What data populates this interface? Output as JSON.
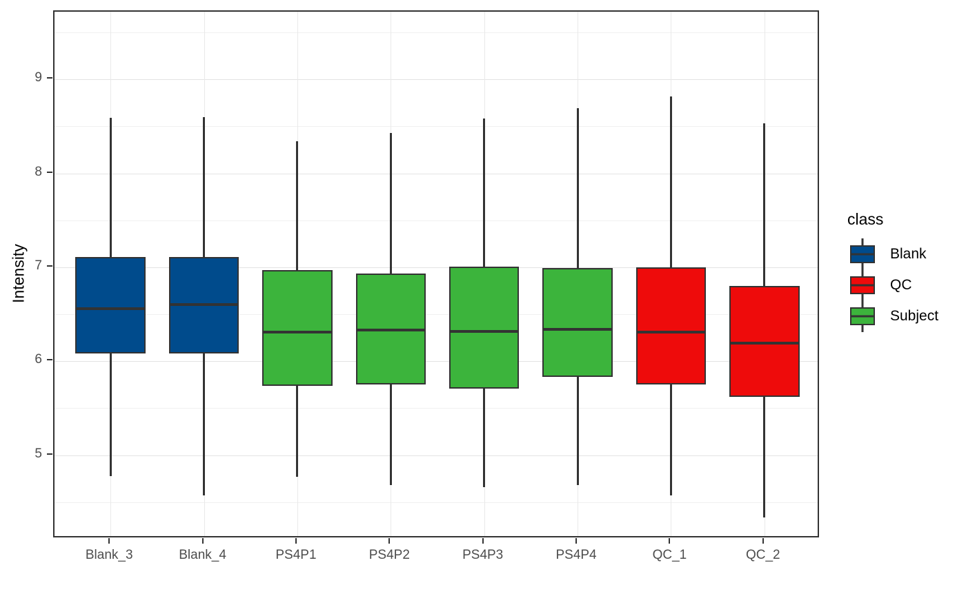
{
  "chart_data": {
    "type": "boxplot",
    "title": "",
    "xlabel": "",
    "ylabel": "Intensity",
    "categories": [
      "Blank_3",
      "Blank_4",
      "PS4P1",
      "PS4P2",
      "PS4P3",
      "PS4P4",
      "QC_1",
      "QC_2"
    ],
    "series": [
      {
        "sample": "Blank_3",
        "class": "Blank",
        "whisker_low": 4.78,
        "q1": 6.08,
        "median": 6.56,
        "q3": 7.11,
        "whisker_high": 8.59
      },
      {
        "sample": "Blank_4",
        "class": "Blank",
        "whisker_low": 4.57,
        "q1": 6.08,
        "median": 6.6,
        "q3": 7.11,
        "whisker_high": 8.6
      },
      {
        "sample": "PS4P1",
        "class": "Subject",
        "whisker_low": 4.77,
        "q1": 5.74,
        "median": 6.31,
        "q3": 6.97,
        "whisker_high": 8.34
      },
      {
        "sample": "PS4P2",
        "class": "Subject",
        "whisker_low": 4.68,
        "q1": 5.75,
        "median": 6.33,
        "q3": 6.93,
        "whisker_high": 8.43
      },
      {
        "sample": "PS4P3",
        "class": "Subject",
        "whisker_low": 4.66,
        "q1": 5.71,
        "median": 6.32,
        "q3": 7.01,
        "whisker_high": 8.58
      },
      {
        "sample": "PS4P4",
        "class": "Subject",
        "whisker_low": 4.68,
        "q1": 5.83,
        "median": 6.34,
        "q3": 6.99,
        "whisker_high": 8.69
      },
      {
        "sample": "QC_1",
        "class": "QC",
        "whisker_low": 4.57,
        "q1": 5.75,
        "median": 6.31,
        "q3": 7.0,
        "whisker_high": 8.82
      },
      {
        "sample": "QC_2",
        "class": "QC",
        "whisker_low": 4.34,
        "q1": 5.62,
        "median": 6.19,
        "q3": 6.8,
        "whisker_high": 8.53
      }
    ],
    "yticks": [
      9,
      8,
      7,
      6,
      5
    ],
    "yticks_minor": [
      9.5,
      8.5,
      7.5,
      6.5,
      5.5,
      4.5
    ],
    "ylim": [
      4.11,
      9.72
    ],
    "grid": {
      "major": true,
      "minor": true
    },
    "legend": {
      "title": "class",
      "position": "right",
      "entries": [
        {
          "label": "Blank",
          "color": "#004B8C"
        },
        {
          "label": "QC",
          "color": "#EE0B0B"
        },
        {
          "label": "Subject",
          "color": "#3CB43C"
        }
      ]
    },
    "colors": {
      "Blank": "#004B8C",
      "QC": "#EE0B0B",
      "Subject": "#3CB43C",
      "box_border": "#333333",
      "median": "#333333",
      "whisker": "#333333",
      "panel_border": "#333333",
      "panel_bg": "#FFFFFF",
      "grid_major": "#E3E3E3",
      "grid_minor": "#F0F0F0",
      "grid_vertical": "#E9E9E9",
      "axis_tick": "#333333",
      "axis_text": "#4D4D4D",
      "title_text": "#000000"
    }
  }
}
